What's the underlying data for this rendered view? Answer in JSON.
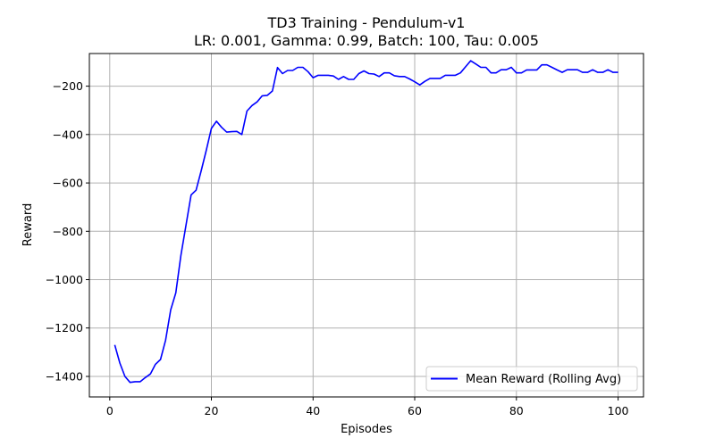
{
  "chart_data": {
    "type": "line",
    "title": "TD3 Training - Pendulum-v1",
    "subtitle": "LR: 0.001, Gamma: 0.99, Batch: 100, Tau: 0.005",
    "xlabel": "Episodes",
    "ylabel": "Reward",
    "xlim": [
      -4,
      105
    ],
    "ylim": [
      -1485,
      -65
    ],
    "xticks": [
      0,
      20,
      40,
      60,
      80,
      100
    ],
    "xtick_labels": [
      "0",
      "20",
      "40",
      "60",
      "80",
      "100"
    ],
    "yticks": [
      -1400,
      -1200,
      -1000,
      -800,
      -600,
      -400,
      -200
    ],
    "ytick_labels": [
      "−1400",
      "−1200",
      "−1000",
      "−800",
      "−600",
      "−400",
      "−200"
    ],
    "grid": true,
    "legend_position": "bottom-right",
    "series": [
      {
        "name": "Mean Reward (Rolling Avg)",
        "color": "#0000ff",
        "x": [
          1,
          2,
          3,
          4,
          5,
          6,
          7,
          8,
          9,
          10,
          11,
          12,
          13,
          14,
          15,
          16,
          17,
          18,
          19,
          20,
          21,
          22,
          23,
          24,
          25,
          26,
          27,
          28,
          29,
          30,
          31,
          32,
          33,
          34,
          35,
          36,
          37,
          38,
          39,
          40,
          41,
          42,
          43,
          44,
          45,
          46,
          47,
          48,
          49,
          50,
          51,
          52,
          53,
          54,
          55,
          56,
          57,
          58,
          59,
          60,
          61,
          62,
          63,
          64,
          65,
          66,
          67,
          68,
          69,
          70,
          71,
          72,
          73,
          74,
          75,
          76,
          77,
          78,
          79,
          80,
          81,
          82,
          83,
          84,
          85,
          86,
          87,
          88,
          89,
          90,
          91,
          92,
          93,
          94,
          95,
          96,
          97,
          98,
          99,
          100
        ],
        "y": [
          -1270,
          -1345,
          -1400,
          -1425,
          -1422,
          -1422,
          -1405,
          -1390,
          -1350,
          -1330,
          -1250,
          -1125,
          -1055,
          -900,
          -775,
          -650,
          -630,
          -550,
          -465,
          -375,
          -345,
          -370,
          -390,
          -388,
          -387,
          -400,
          -303,
          -280,
          -265,
          -240,
          -238,
          -220,
          -123,
          -148,
          -135,
          -135,
          -122,
          -122,
          -140,
          -165,
          -155,
          -155,
          -155,
          -158,
          -172,
          -160,
          -172,
          -172,
          -148,
          -137,
          -148,
          -150,
          -160,
          -145,
          -145,
          -157,
          -160,
          -160,
          -170,
          -182,
          -195,
          -180,
          -168,
          -168,
          -168,
          -155,
          -155,
          -155,
          -145,
          -120,
          -95,
          -108,
          -122,
          -122,
          -145,
          -145,
          -132,
          -132,
          -122,
          -145,
          -145,
          -133,
          -133,
          -133,
          -112,
          -112,
          -122,
          -133,
          -143,
          -132,
          -132,
          -132,
          -143,
          -143,
          -132,
          -143,
          -143,
          -132,
          -143,
          -143
        ]
      }
    ]
  }
}
